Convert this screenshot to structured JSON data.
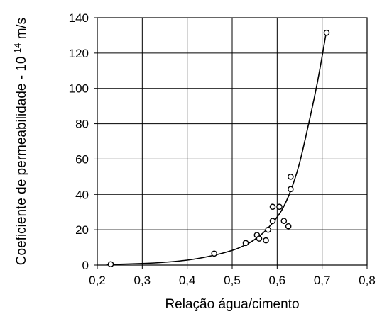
{
  "chart_data": {
    "type": "scatter",
    "title": "",
    "xlabel": "Relação água/cimento",
    "ylabel_prefix": "Coeficiente de permeabilidade - 10",
    "ylabel_exponent": "-14",
    "ylabel_unit": " m/s",
    "xlim": [
      0.2,
      0.8
    ],
    "ylim": [
      0,
      140
    ],
    "grid": true,
    "x_ticks": [
      0.2,
      0.3,
      0.4,
      0.5,
      0.6,
      0.7,
      0.8
    ],
    "x_tick_labels": [
      "0,2",
      "0,3",
      "0,4",
      "0,5",
      "0,6",
      "0,7",
      "0,8"
    ],
    "y_ticks": [
      0,
      20,
      40,
      60,
      80,
      100,
      120,
      140
    ],
    "y_tick_labels": [
      "0",
      "20",
      "40",
      "60",
      "80",
      "100",
      "120",
      "140"
    ],
    "points": [
      {
        "x": 0.23,
        "y": 0.5
      },
      {
        "x": 0.46,
        "y": 6.5
      },
      {
        "x": 0.53,
        "y": 12.5
      },
      {
        "x": 0.555,
        "y": 17
      },
      {
        "x": 0.56,
        "y": 15
      },
      {
        "x": 0.575,
        "y": 14
      },
      {
        "x": 0.58,
        "y": 20
      },
      {
        "x": 0.59,
        "y": 25
      },
      {
        "x": 0.59,
        "y": 33
      },
      {
        "x": 0.605,
        "y": 33
      },
      {
        "x": 0.615,
        "y": 25
      },
      {
        "x": 0.625,
        "y": 22
      },
      {
        "x": 0.63,
        "y": 50
      },
      {
        "x": 0.63,
        "y": 43
      },
      {
        "x": 0.71,
        "y": 131.5
      }
    ],
    "fit_curve": [
      [
        0.22,
        0.3
      ],
      [
        0.3,
        0.9
      ],
      [
        0.35,
        1.6
      ],
      [
        0.4,
        2.8
      ],
      [
        0.45,
        5
      ],
      [
        0.5,
        8.3
      ],
      [
        0.53,
        11.5
      ],
      [
        0.55,
        14.5
      ],
      [
        0.57,
        18.5
      ],
      [
        0.59,
        24
      ],
      [
        0.61,
        31
      ],
      [
        0.63,
        42
      ],
      [
        0.65,
        58
      ],
      [
        0.67,
        80
      ],
      [
        0.69,
        104
      ],
      [
        0.71,
        133
      ]
    ]
  }
}
